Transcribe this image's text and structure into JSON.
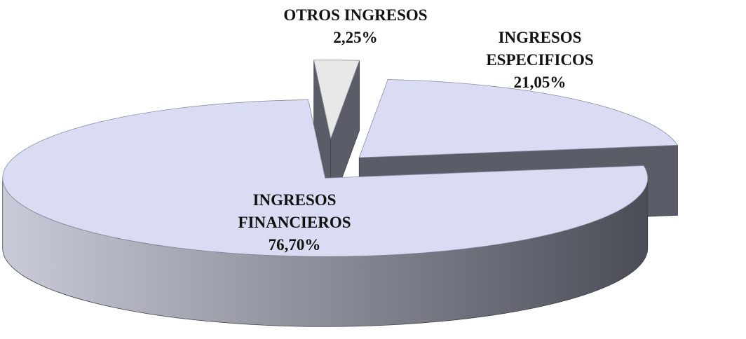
{
  "chart_data": {
    "type": "pie",
    "categories": [
      "OTROS INGRESOS",
      "INGRESOS ESPECIFICOS",
      "INGRESOS FINANCIEROS"
    ],
    "values": [
      2.25,
      21.05,
      76.7
    ],
    "value_labels": [
      "2,25%",
      "21,05%",
      "76,70%"
    ],
    "colors": [
      "#e8e8e8",
      "#dadcf3",
      "#dadcf3"
    ]
  }
}
